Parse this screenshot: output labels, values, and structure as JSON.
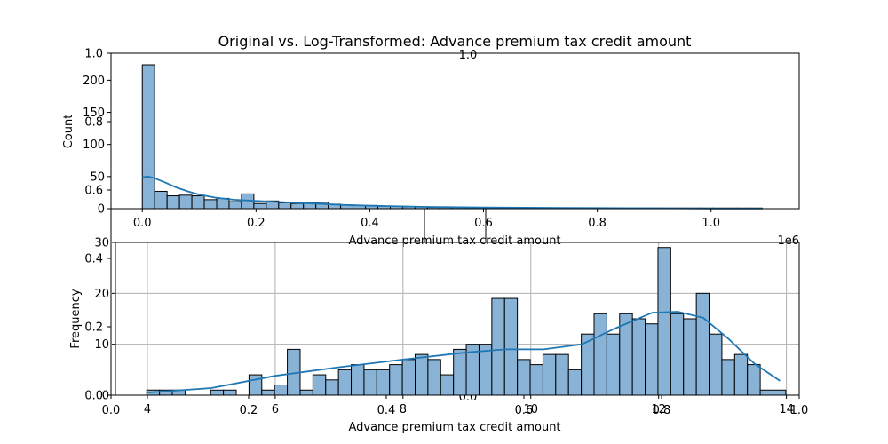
{
  "figure_title": "Original vs. Log-Transformed: Advance premium tax credit amount",
  "colors": {
    "bar_fill": "#89b3d6",
    "bar_edge": "#000000",
    "kde_line": "#1f77b4",
    "grid": "#b0b0b0",
    "axis": "#000000",
    "background": "#ffffff"
  },
  "chart_data": [
    {
      "type": "histogram",
      "title": "",
      "xlabel": "Advance premium tax credit amount",
      "ylabel": "Count",
      "x_offset_label": "1e6",
      "xlim": [
        -0.055,
        1.155
      ],
      "ylim": [
        0,
        242
      ],
      "xticks": [
        0.0,
        0.2,
        0.4,
        0.6,
        0.8,
        1.0
      ],
      "xtick_labels": [
        "0.0",
        "0.2",
        "0.4",
        "0.6",
        "0.8",
        "1.0"
      ],
      "yticks": [
        0,
        50,
        100,
        150,
        200
      ],
      "ytick_labels": [
        "0",
        "50",
        "100",
        "150",
        "200"
      ],
      "grid": false,
      "bin_start": 0.0,
      "bin_width": 0.0218,
      "counts": [
        224,
        27,
        20,
        21,
        20,
        14,
        16,
        11,
        23,
        8,
        12,
        9,
        8,
        10,
        10,
        7,
        6,
        5,
        5,
        4,
        4,
        3,
        3,
        2,
        2,
        2,
        2,
        2,
        1,
        1,
        1,
        1,
        1,
        1,
        1,
        1,
        1,
        1,
        1,
        1,
        1,
        1,
        1,
        1,
        1,
        1,
        1,
        1,
        1,
        1
      ],
      "kde": {
        "x": [
          0.0,
          0.01,
          0.02,
          0.04,
          0.06,
          0.08,
          0.1,
          0.13,
          0.16,
          0.2,
          0.25,
          0.3,
          0.35,
          0.4,
          0.5,
          0.6,
          0.8,
          1.0,
          1.09
        ],
        "y": [
          49,
          50,
          48,
          41,
          33,
          27,
          22,
          17,
          14,
          12,
          10,
          8,
          6,
          4.5,
          2.8,
          1.8,
          0.9,
          0.3,
          0.1
        ]
      }
    },
    {
      "type": "histogram",
      "title": "",
      "xlabel": "Advance premium tax credit amount",
      "ylabel": "Frequency",
      "xlim": [
        3.5,
        14.2
      ],
      "ylim": [
        0,
        30
      ],
      "xticks": [
        4,
        6,
        8,
        10,
        12,
        14
      ],
      "xtick_labels": [
        "4",
        "6",
        "8",
        "10",
        "12",
        "14"
      ],
      "yticks": [
        0,
        10,
        20,
        30
      ],
      "ytick_labels": [
        "0",
        "10",
        "20",
        "30"
      ],
      "grid": true,
      "bin_start": 3.99,
      "bin_width": 0.2,
      "counts": [
        1,
        1,
        1,
        0,
        0,
        1,
        1,
        0,
        4,
        1,
        2,
        9,
        1,
        4,
        3,
        5,
        6,
        5,
        5,
        6,
        7,
        8,
        7,
        4,
        9,
        10,
        10,
        19,
        19,
        7,
        6,
        8,
        8,
        5,
        12,
        16,
        12,
        16,
        15,
        14,
        29,
        16,
        15,
        20,
        12,
        7,
        8,
        6,
        1,
        1
      ],
      "kde": {
        "x": [
          4.0,
          5.0,
          6.0,
          7.0,
          8.0,
          9.0,
          9.6,
          10.2,
          10.8,
          11.3,
          11.9,
          12.3,
          12.7,
          13.1,
          13.5,
          13.9
        ],
        "y": [
          0.5,
          1.4,
          3.8,
          5.5,
          7.0,
          8.4,
          9.0,
          9.0,
          10.0,
          13.0,
          16.2,
          16.4,
          15.2,
          11.0,
          6.2,
          2.8
        ]
      }
    }
  ],
  "overlay_axes": {
    "yticks": [
      "0.0",
      "0.2",
      "0.4",
      "0.6",
      "0.8",
      "1.0"
    ],
    "xticks": [
      "0.0",
      "0.2",
      "0.4",
      "0.6",
      "0.8",
      "1.0"
    ],
    "center_label": "1.0",
    "center_bottom_label": "0.0"
  }
}
